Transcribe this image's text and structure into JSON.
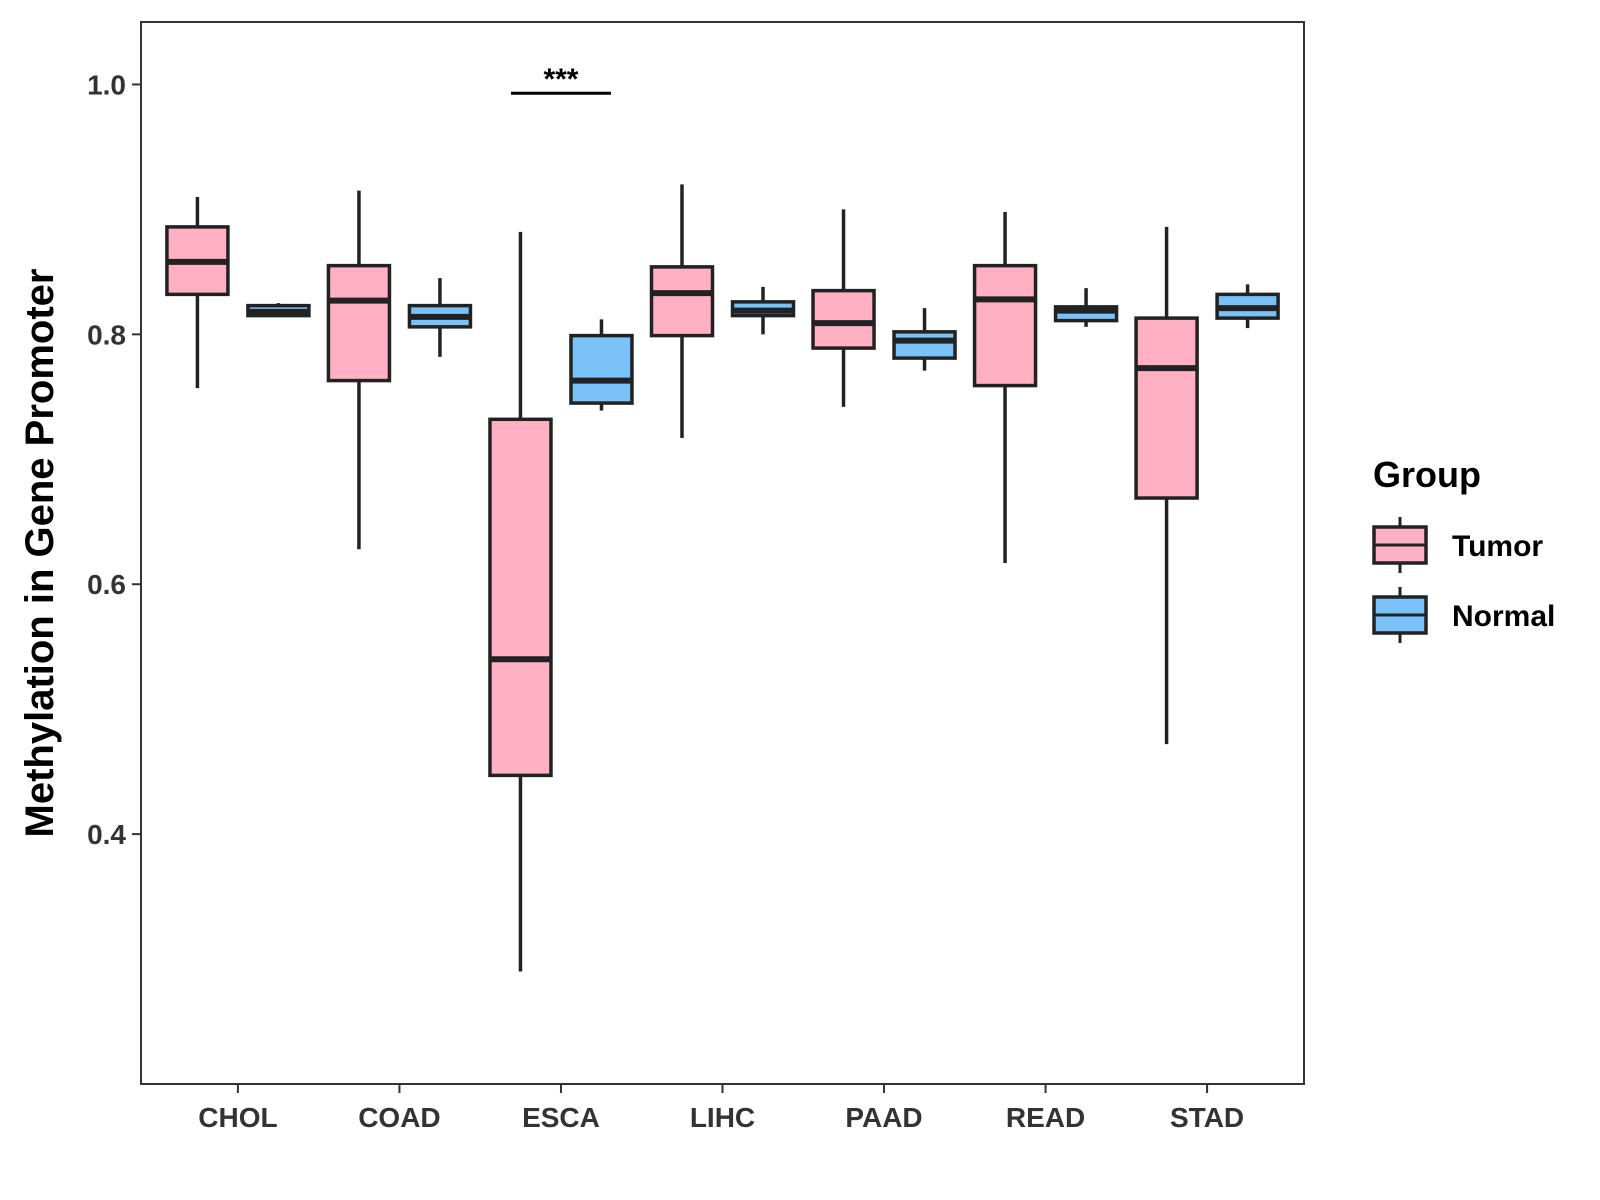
{
  "chart_data": {
    "type": "boxplot",
    "title": "",
    "xlabel": "",
    "ylabel": "Methylation in Gene Promoter",
    "ylim": [
      0.2,
      1.05
    ],
    "yticks": [
      0.4,
      0.6,
      0.8,
      1.0
    ],
    "ytick_labels": [
      "0.4",
      "0.6",
      "0.8",
      "1.0"
    ],
    "grid": false,
    "categories": [
      "CHOL",
      "COAD",
      "ESCA",
      "LIHC",
      "PAAD",
      "READ",
      "STAD"
    ],
    "legend": {
      "title": "Group",
      "position": "right",
      "entries": [
        {
          "name": "Tumor",
          "color": "#FFB0C2"
        },
        {
          "name": "Normal",
          "color": "#7AC1F8"
        }
      ]
    },
    "series": [
      {
        "name": "Tumor",
        "color": "#FFB0C2",
        "boxes": [
          {
            "category": "CHOL",
            "min": 0.757,
            "q1": 0.832,
            "median": 0.858,
            "q3": 0.886,
            "max": 0.91
          },
          {
            "category": "COAD",
            "min": 0.628,
            "q1": 0.763,
            "median": 0.827,
            "q3": 0.855,
            "max": 0.915
          },
          {
            "category": "ESCA",
            "min": 0.29,
            "q1": 0.447,
            "median": 0.54,
            "q3": 0.732,
            "max": 0.882
          },
          {
            "category": "LIHC",
            "min": 0.717,
            "q1": 0.799,
            "median": 0.833,
            "q3": 0.854,
            "max": 0.92
          },
          {
            "category": "PAAD",
            "min": 0.742,
            "q1": 0.789,
            "median": 0.809,
            "q3": 0.835,
            "max": 0.9
          },
          {
            "category": "READ",
            "min": 0.617,
            "q1": 0.759,
            "median": 0.828,
            "q3": 0.855,
            "max": 0.898
          },
          {
            "category": "STAD",
            "min": 0.472,
            "q1": 0.669,
            "median": 0.773,
            "q3": 0.813,
            "max": 0.886
          }
        ]
      },
      {
        "name": "Normal",
        "color": "#7AC1F8",
        "boxes": [
          {
            "category": "CHOL",
            "min": 0.814,
            "q1": 0.815,
            "median": 0.818,
            "q3": 0.823,
            "max": 0.825
          },
          {
            "category": "COAD",
            "min": 0.782,
            "q1": 0.806,
            "median": 0.814,
            "q3": 0.823,
            "max": 0.845
          },
          {
            "category": "ESCA",
            "min": 0.739,
            "q1": 0.745,
            "median": 0.763,
            "q3": 0.799,
            "max": 0.812
          },
          {
            "category": "LIHC",
            "min": 0.8,
            "q1": 0.815,
            "median": 0.819,
            "q3": 0.826,
            "max": 0.838
          },
          {
            "category": "PAAD",
            "min": 0.771,
            "q1": 0.781,
            "median": 0.795,
            "q3": 0.802,
            "max": 0.821
          },
          {
            "category": "READ",
            "min": 0.806,
            "q1": 0.811,
            "median": 0.819,
            "q3": 0.822,
            "max": 0.837
          },
          {
            "category": "STAD",
            "min": 0.805,
            "q1": 0.813,
            "median": 0.821,
            "q3": 0.832,
            "max": 0.84
          }
        ]
      }
    ],
    "annotations": [
      {
        "category": "ESCA",
        "text": "***",
        "y": 0.993
      }
    ]
  }
}
